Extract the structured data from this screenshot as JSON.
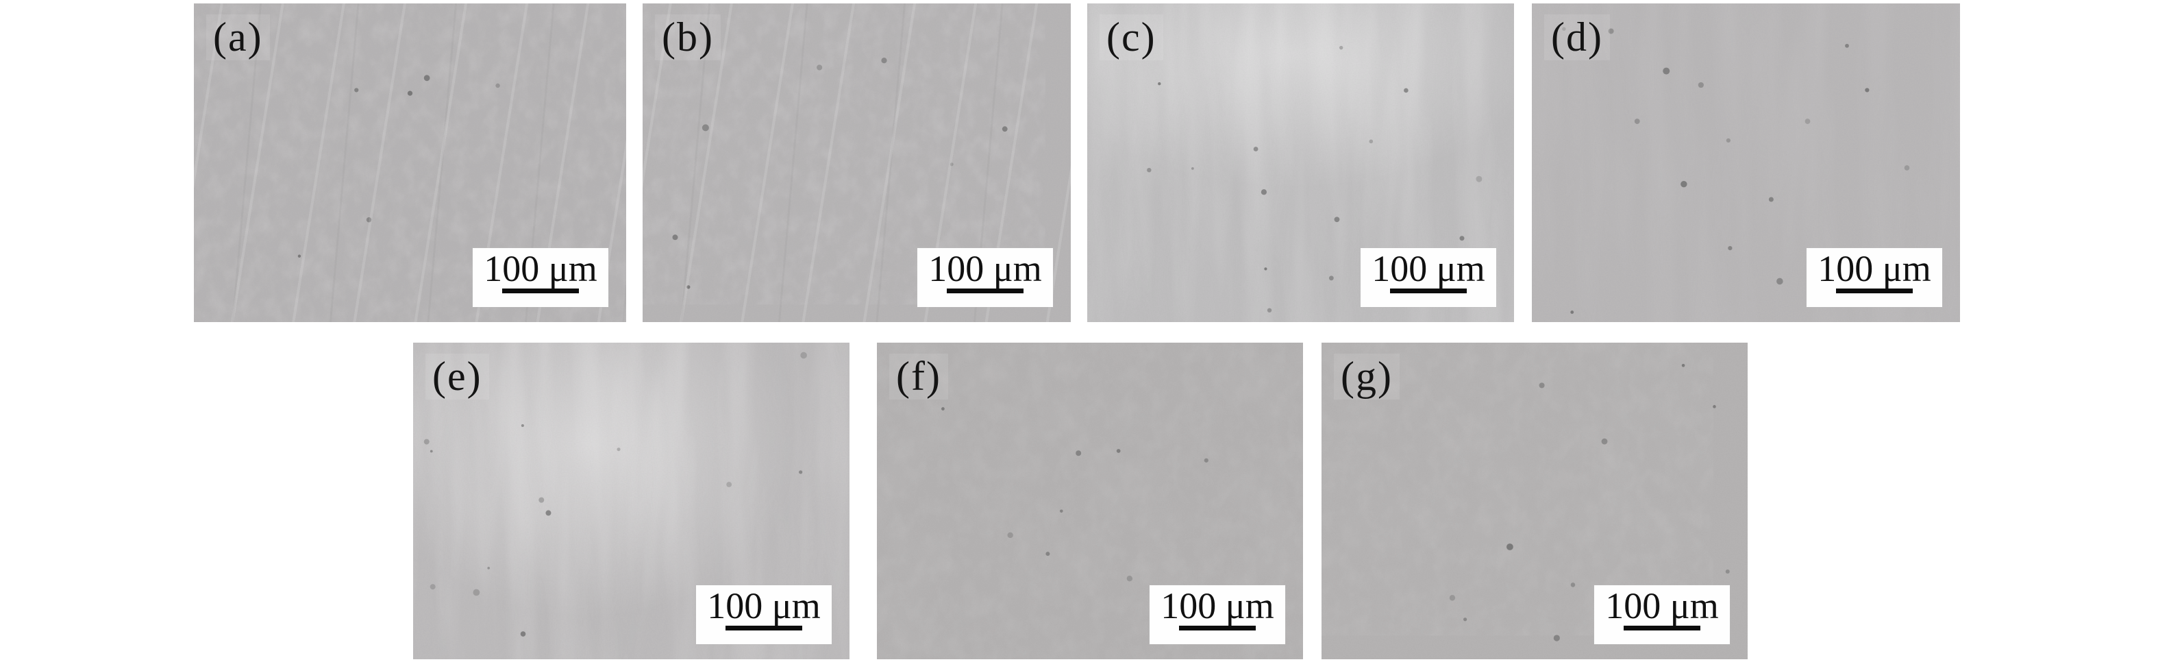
{
  "figure": {
    "type": "micrograph-grid",
    "rows": [
      [
        "a",
        "b",
        "c",
        "d"
      ],
      [
        "e",
        "f",
        "g"
      ]
    ],
    "panels": [
      {
        "id": "a",
        "label": "(a)",
        "scale_label": "100 μm",
        "texture": "smooth fine grain, faint diagonal polishing scratches, few dark specks",
        "base_color": "#b5b3b4"
      },
      {
        "id": "b",
        "label": "(b)",
        "scale_label": "100 μm",
        "texture": "smooth fine grain, faint diagonal polishing scratches, few dark specks",
        "base_color": "#b6b4b5"
      },
      {
        "id": "c",
        "label": "(c)",
        "scale_label": "100 μm",
        "texture": "light vertical streaks, bright patch top-centre, many small dark specks",
        "base_color": "#bebdbe"
      },
      {
        "id": "d",
        "label": "(d)",
        "scale_label": "100 μm",
        "texture": "nearly uniform grey, scattered small dark specks",
        "base_color": "#b8b6b7"
      },
      {
        "id": "e",
        "label": "(e)",
        "scale_label": "100 μm",
        "texture": "light vertical streaks, bright central band, scattered dark specks",
        "base_color": "#bcbabb"
      },
      {
        "id": "f",
        "label": "(f)",
        "scale_label": "100 μm",
        "texture": "mottled wavy darker veins, few dark specks",
        "base_color": "#b3b1b1"
      },
      {
        "id": "g",
        "label": "(g)",
        "scale_label": "100 μm",
        "texture": "mottled wavy darker veins, scattered dark specks",
        "base_color": "#b4b2b2"
      }
    ],
    "colors": {
      "page_background": "#ffffff",
      "label_text": "#141414",
      "scale_box_background": "#fefefe",
      "scale_text": "#101010",
      "scale_bar": "#0d0d0d",
      "speck": "#606060"
    }
  }
}
